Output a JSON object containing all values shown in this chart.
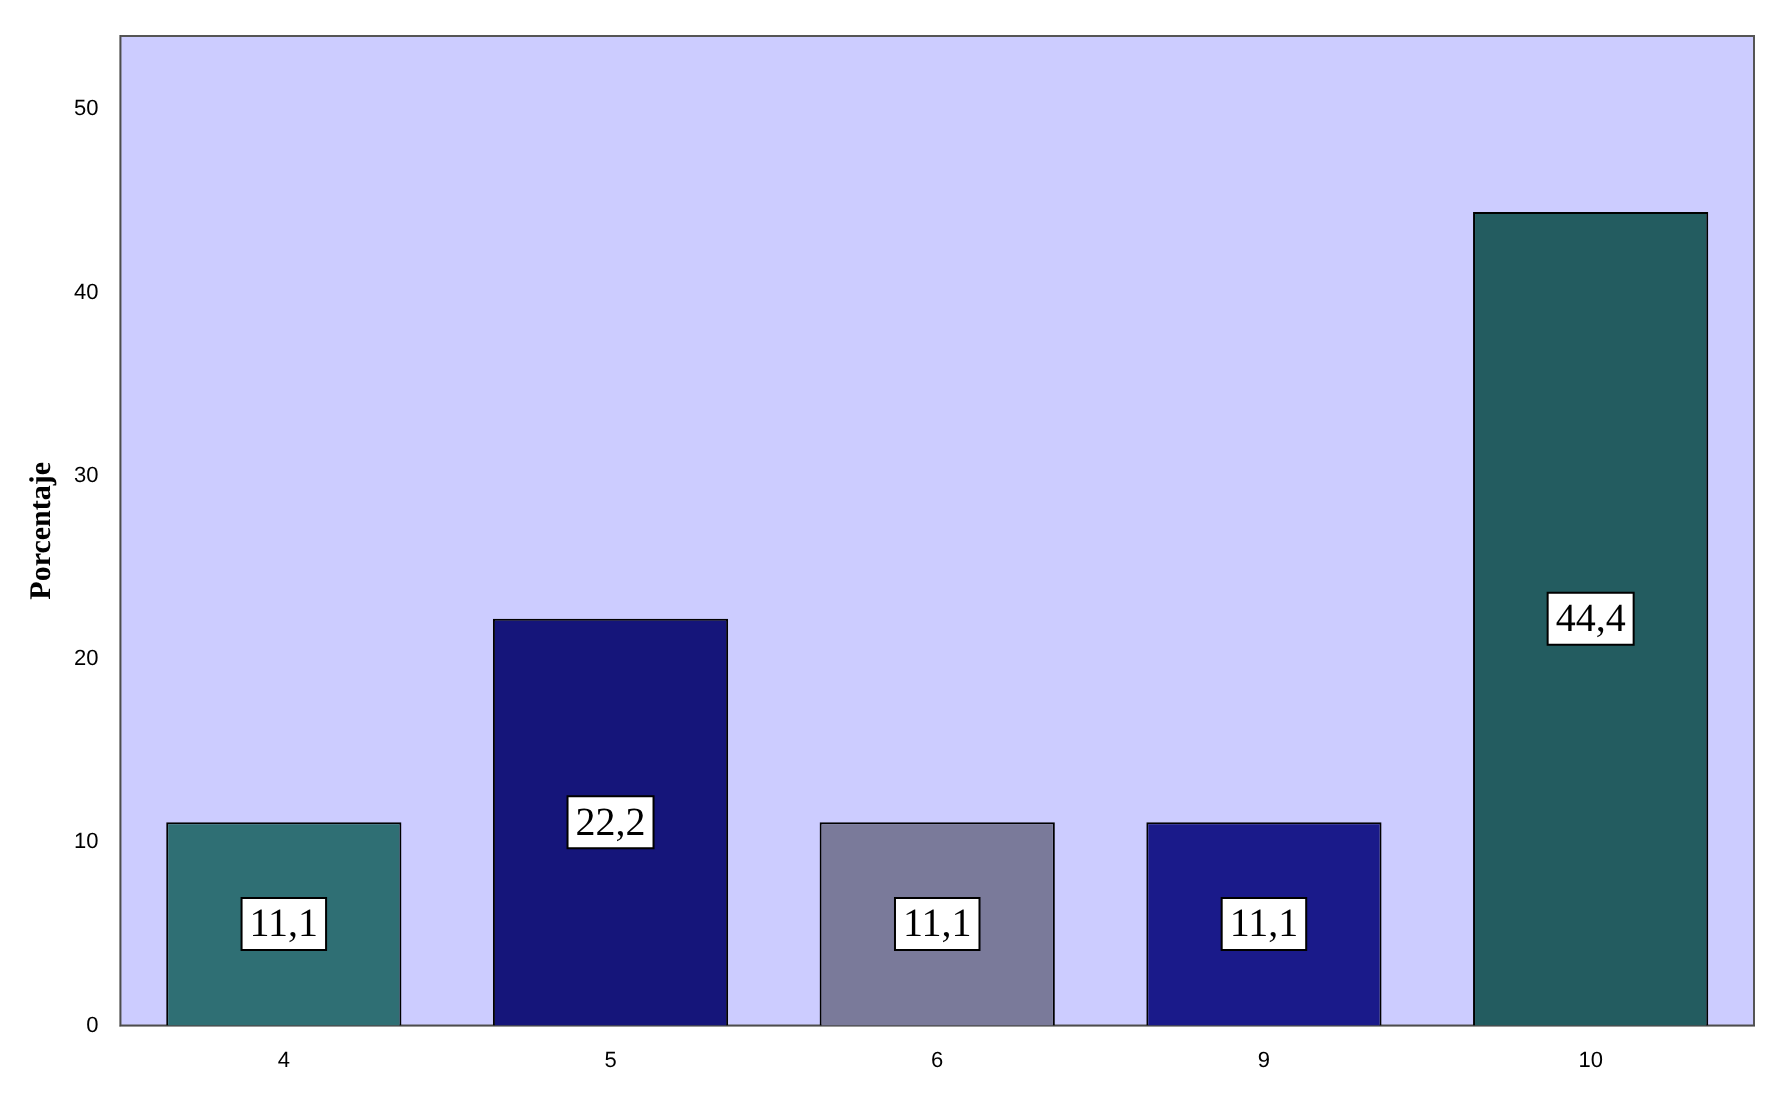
{
  "chart_data": {
    "type": "bar",
    "ylabel": "Porcentaje",
    "categories": [
      "4",
      "5",
      "6",
      "9",
      "10"
    ],
    "values": [
      11.1,
      22.2,
      11.1,
      11.1,
      44.4
    ],
    "colors": [
      "#2f6f74",
      "#15157a",
      "#7a7a9a",
      "#1a1a8a",
      "#235c60"
    ],
    "value_labels": [
      "11,1",
      "22,2",
      "11,1",
      "11,1",
      "44,4"
    ],
    "ylim": [
      0,
      54
    ],
    "yticks": [
      0,
      10,
      20,
      30,
      40,
      50
    ],
    "grid": false,
    "legend": false
  }
}
